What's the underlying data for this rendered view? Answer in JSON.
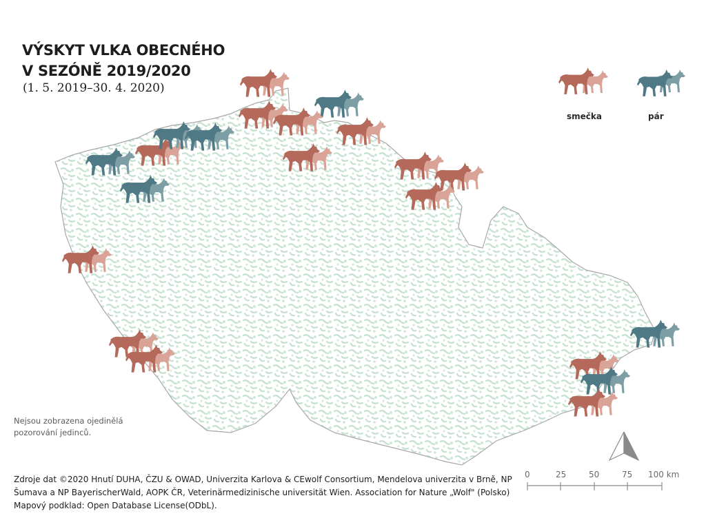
{
  "title": {
    "line1": "VÝSKYT VLKA OBECNÉHO",
    "line2": "V SEZÓNĚ 2019/2020",
    "period": "(1. 5. 2019–30. 4. 2020)"
  },
  "legend": {
    "pack_label": "smečka",
    "pair_label": "pár",
    "pack_color": "#b5695a",
    "pack_color_light": "#d9a497",
    "pair_color": "#4f7a85",
    "pair_color_light": "#7e9ea6"
  },
  "note": {
    "line1": "Nejsou zobrazena ojedinělá",
    "line2": "pozorování jedinců."
  },
  "scale_bar": {
    "ticks": [
      "0",
      "25",
      "50",
      "75",
      "100 km"
    ]
  },
  "north_arrow": {
    "icon": "north-arrow-icon"
  },
  "sources": {
    "line1": "Zdroje dat ©2020 Hnutí DUHA, ČZU & OWAD, Univerzita Karlova & CEwolf Consortium, Mendelova univerzita v Brně, NP",
    "line2": "Šumava a NP BayerischerWald, AOPK ČR, Veterinärmedizinische universität Wien. Association for Nature „Wolf\" (Polsko)",
    "line3": "Mapový podklad: Open Database License(ODbL)."
  },
  "map": {
    "forest_color": "#cfe6d7",
    "border_color": "#9a9a9a",
    "markers": [
      {
        "type": "pack"
      },
      {
        "type": "pack"
      },
      {
        "type": "pair"
      },
      {
        "type": "pack"
      },
      {
        "type": "pack"
      },
      {
        "type": "pair"
      },
      {
        "type": "pack"
      },
      {
        "type": "pair"
      },
      {
        "type": "pair"
      },
      {
        "type": "pack"
      },
      {
        "type": "pack"
      },
      {
        "type": "pack"
      },
      {
        "type": "pack"
      },
      {
        "type": "pack"
      },
      {
        "type": "pair"
      },
      {
        "type": "pack"
      },
      {
        "type": "pack"
      },
      {
        "type": "pair"
      },
      {
        "type": "pack"
      },
      {
        "type": "pair"
      },
      {
        "type": "pack"
      }
    ]
  }
}
